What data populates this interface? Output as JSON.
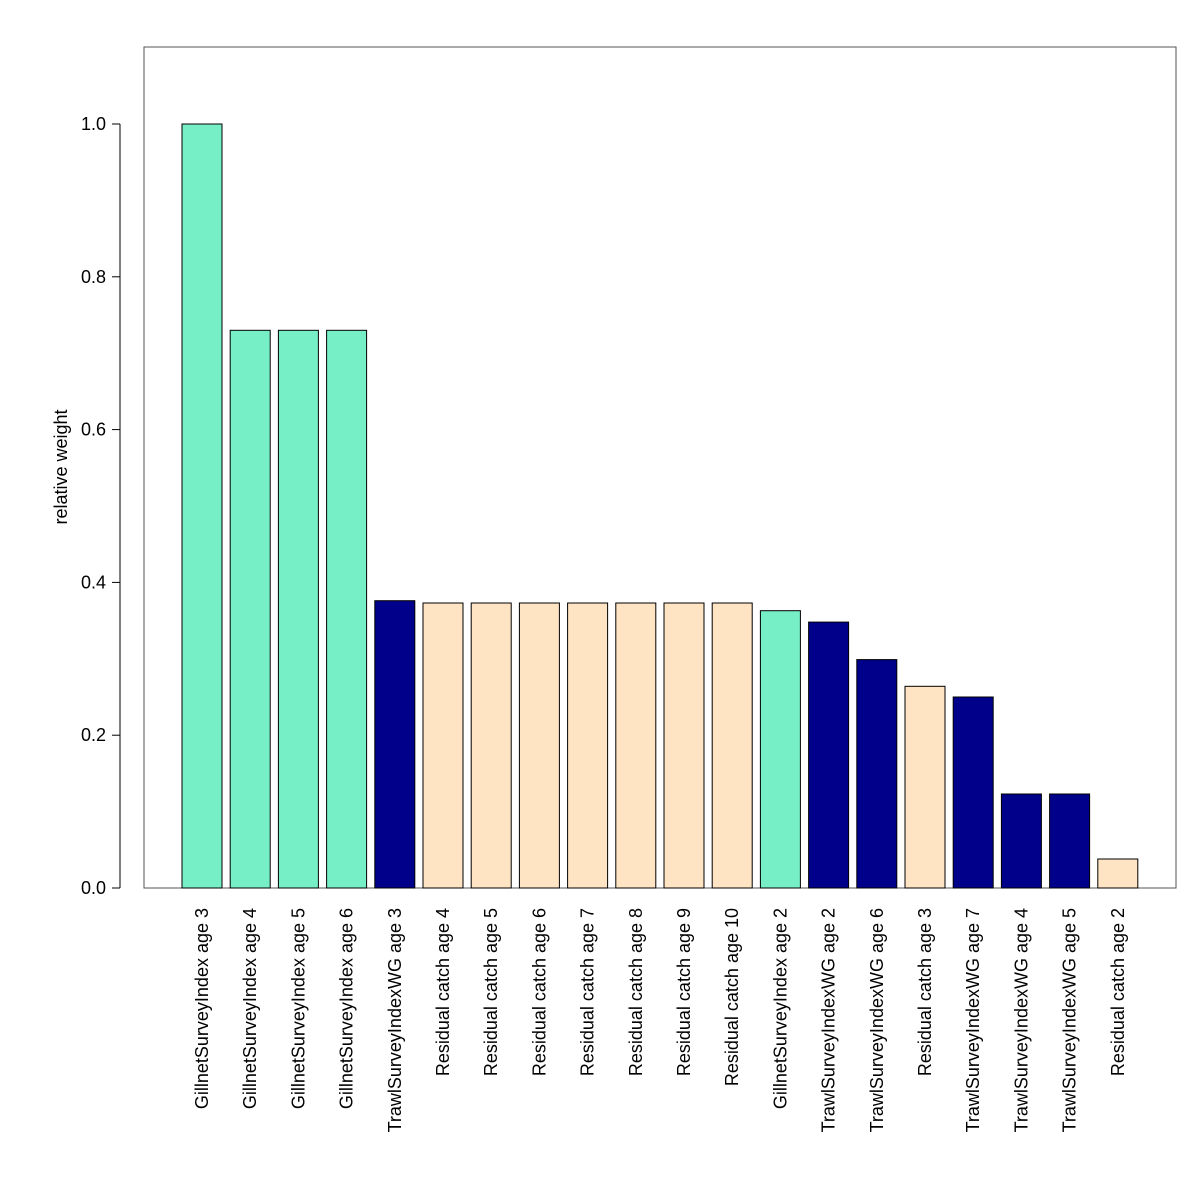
{
  "chart_data": {
    "type": "bar",
    "title": "",
    "xlabel": "",
    "ylabel": "relative weight",
    "ylim": [
      0,
      1.1
    ],
    "yticks": [
      0.0,
      0.2,
      0.4,
      0.6,
      0.8,
      1.0
    ],
    "ytick_labels": [
      "0.0",
      "0.2",
      "0.4",
      "0.6",
      "0.8",
      "1.0"
    ],
    "grid": false,
    "legend": "none",
    "categories": [
      "GillnetSurveyIndex age 3",
      "GillnetSurveyIndex age 4",
      "GillnetSurveyIndex age 5",
      "GillnetSurveyIndex age 6",
      "TrawlSurveyIndexWG age 3",
      "Residual catch age 4",
      "Residual catch age 5",
      "Residual catch age 6",
      "Residual catch age 7",
      "Residual catch age 8",
      "Residual catch age 9",
      "Residual catch age 10",
      "GillnetSurveyIndex age 2",
      "TrawlSurveyIndexWG age 2",
      "TrawlSurveyIndexWG age 6",
      "Residual catch age 3",
      "TrawlSurveyIndexWG age 7",
      "TrawlSurveyIndexWG age 4",
      "TrawlSurveyIndexWG age 5",
      "Residual catch age 2"
    ],
    "values": [
      1.0,
      0.73,
      0.73,
      0.73,
      0.376,
      0.373,
      0.373,
      0.373,
      0.373,
      0.373,
      0.373,
      0.373,
      0.363,
      0.348,
      0.299,
      0.264,
      0.25,
      0.123,
      0.123,
      0.038
    ],
    "bar_colors": [
      "#76EEC6",
      "#76EEC6",
      "#76EEC6",
      "#76EEC6",
      "#00008B",
      "#FFE4C4",
      "#FFE4C4",
      "#FFE4C4",
      "#FFE4C4",
      "#FFE4C4",
      "#FFE4C4",
      "#FFE4C4",
      "#76EEC6",
      "#00008B",
      "#00008B",
      "#FFE4C4",
      "#00008B",
      "#00008B",
      "#00008B",
      "#FFE4C4"
    ]
  }
}
